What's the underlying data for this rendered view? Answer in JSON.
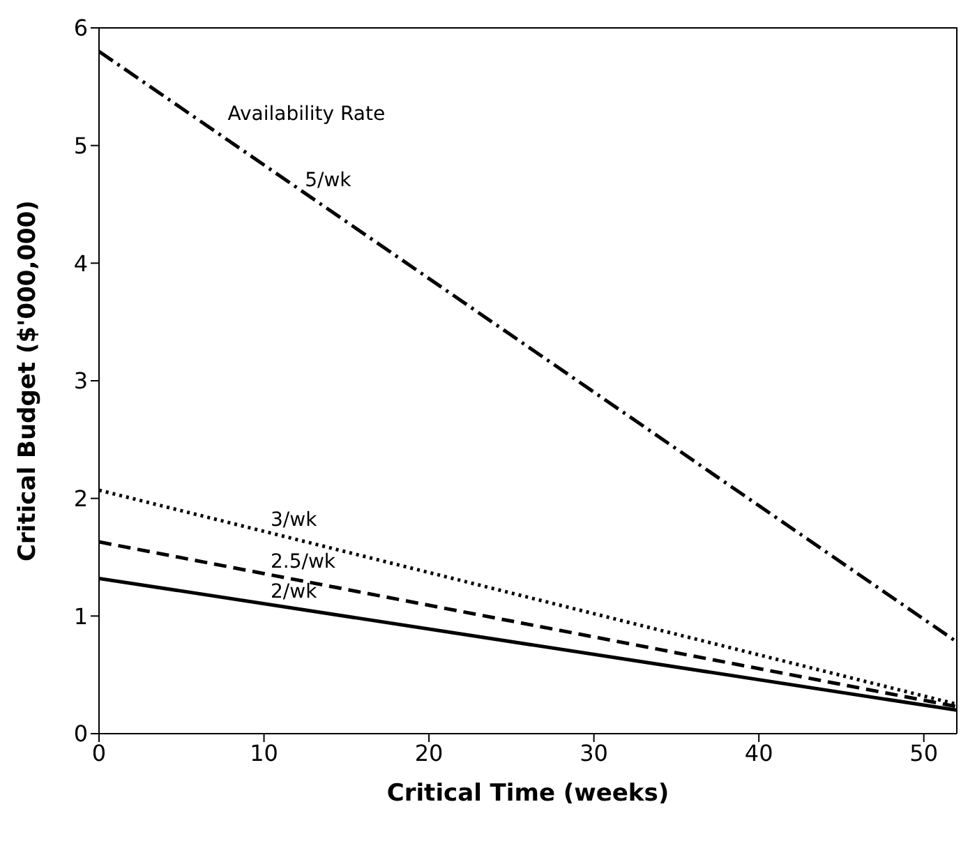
{
  "chart_data": {
    "type": "line",
    "xlabel": "Critical Time (weeks)",
    "ylabel": "Critical Budget ($'000,000)",
    "x": [
      0,
      52
    ],
    "series": [
      {
        "name": "5/wk",
        "color": "#000000",
        "values": [
          5.8,
          0.78
        ],
        "line_style": "dashdot"
      },
      {
        "name": "3/wk",
        "color": "#000000",
        "values": [
          2.07,
          0.25
        ],
        "line_style": "dotted"
      },
      {
        "name": "2.5/wk",
        "color": "#000000",
        "values": [
          1.63,
          0.23
        ],
        "line_style": "dashed"
      },
      {
        "name": "2/wk",
        "color": "#000000",
        "values": [
          1.32,
          0.2
        ],
        "line_style": "solid"
      }
    ],
    "annotations": [
      "Availability Rate"
    ],
    "xlim": [
      0,
      52
    ],
    "xticks": [
      0,
      10,
      20,
      30,
      40,
      50
    ],
    "ylim": [
      0,
      6
    ],
    "yticks": [
      0,
      1,
      2,
      3,
      4,
      5,
      6
    ],
    "grid": false,
    "legend": false,
    "marker": "none"
  }
}
